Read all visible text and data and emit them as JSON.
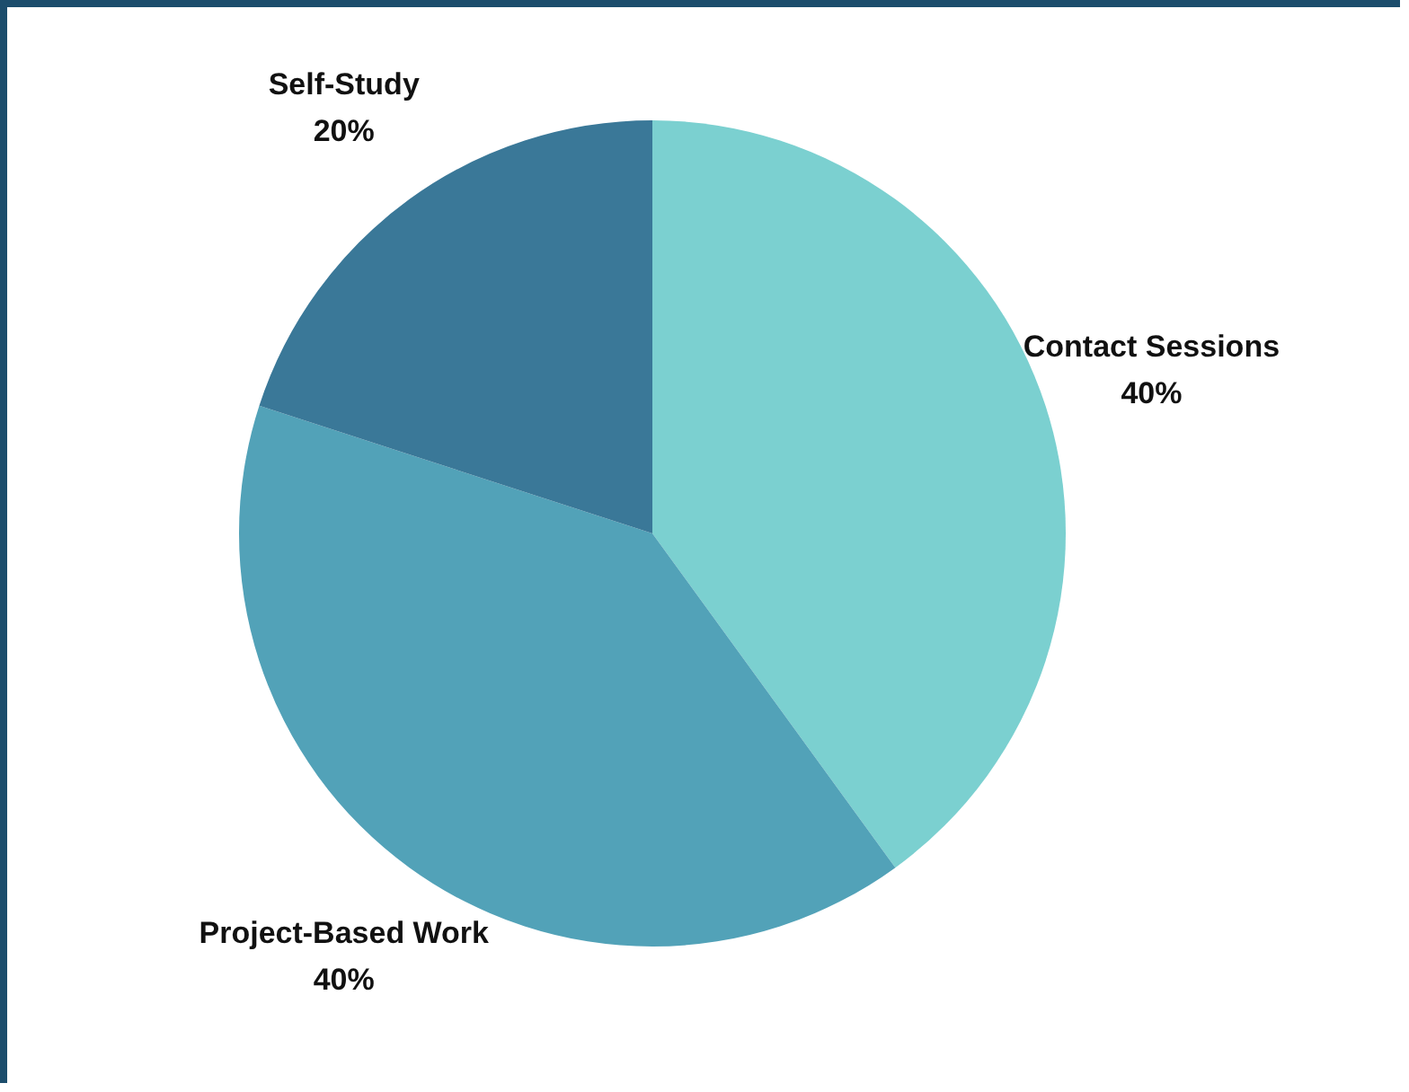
{
  "chart_data": {
    "type": "pie",
    "categories": [
      "Contact Sessions",
      "Project-Based Work",
      "Self-Study"
    ],
    "values": [
      40,
      40,
      20
    ],
    "value_labels": [
      "40%",
      "40%",
      "20%"
    ],
    "colors": [
      "#7bd0d0",
      "#52a2b8",
      "#3a7898"
    ],
    "legend": false
  }
}
